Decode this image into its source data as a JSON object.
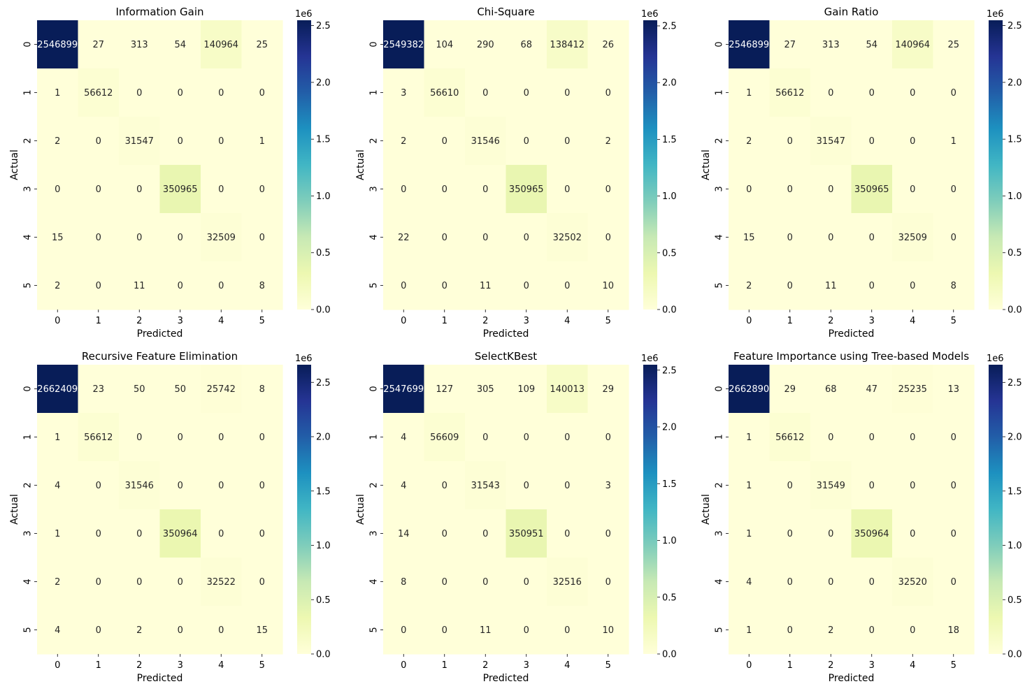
{
  "chart_data": [
    {
      "type": "heatmap",
      "title": "Information Gain",
      "xlabel": "Predicted",
      "ylabel": "Actual",
      "x_categories": [
        "0",
        "1",
        "2",
        "3",
        "4",
        "5"
      ],
      "y_categories": [
        "0",
        "1",
        "2",
        "3",
        "4",
        "5"
      ],
      "values": [
        [
          2546899,
          27,
          313,
          54,
          140964,
          25
        ],
        [
          1,
          56612,
          0,
          0,
          0,
          0
        ],
        [
          2,
          0,
          31547,
          0,
          0,
          1
        ],
        [
          0,
          0,
          0,
          350965,
          0,
          0
        ],
        [
          15,
          0,
          0,
          0,
          32509,
          0
        ],
        [
          2,
          0,
          11,
          0,
          0,
          8
        ]
      ],
      "colorbar": {
        "ticks": [
          "0.0",
          "0.5",
          "1.0",
          "1.5",
          "2.0",
          "2.5"
        ],
        "tick_values": [
          0,
          500000,
          1000000,
          1500000,
          2000000,
          2500000
        ],
        "multiplier": "1e6",
        "range": [
          0,
          2546899
        ]
      }
    },
    {
      "type": "heatmap",
      "title": "Chi-Square",
      "xlabel": "Predicted",
      "ylabel": "Actual",
      "x_categories": [
        "0",
        "1",
        "2",
        "3",
        "4",
        "5"
      ],
      "y_categories": [
        "0",
        "1",
        "2",
        "3",
        "4",
        "5"
      ],
      "values": [
        [
          2549382,
          104,
          290,
          68,
          138412,
          26
        ],
        [
          3,
          56610,
          0,
          0,
          0,
          0
        ],
        [
          2,
          0,
          31546,
          0,
          0,
          2
        ],
        [
          0,
          0,
          0,
          350965,
          0,
          0
        ],
        [
          22,
          0,
          0,
          0,
          32502,
          0
        ],
        [
          0,
          0,
          11,
          0,
          0,
          10
        ]
      ],
      "colorbar": {
        "ticks": [
          "0.0",
          "0.5",
          "1.0",
          "1.5",
          "2.0",
          "2.5"
        ],
        "tick_values": [
          0,
          500000,
          1000000,
          1500000,
          2000000,
          2500000
        ],
        "multiplier": "1e6",
        "range": [
          0,
          2549382
        ]
      }
    },
    {
      "type": "heatmap",
      "title": "Gain Ratio",
      "xlabel": "Predicted",
      "ylabel": "Actual",
      "x_categories": [
        "0",
        "1",
        "2",
        "3",
        "4",
        "5"
      ],
      "y_categories": [
        "0",
        "1",
        "2",
        "3",
        "4",
        "5"
      ],
      "values": [
        [
          2546899,
          27,
          313,
          54,
          140964,
          25
        ],
        [
          1,
          56612,
          0,
          0,
          0,
          0
        ],
        [
          2,
          0,
          31547,
          0,
          0,
          1
        ],
        [
          0,
          0,
          0,
          350965,
          0,
          0
        ],
        [
          15,
          0,
          0,
          0,
          32509,
          0
        ],
        [
          2,
          0,
          11,
          0,
          0,
          8
        ]
      ],
      "colorbar": {
        "ticks": [
          "0.0",
          "0.5",
          "1.0",
          "1.5",
          "2.0",
          "2.5"
        ],
        "tick_values": [
          0,
          500000,
          1000000,
          1500000,
          2000000,
          2500000
        ],
        "multiplier": "1e6",
        "range": [
          0,
          2546899
        ]
      }
    },
    {
      "type": "heatmap",
      "title": "Recursive Feature Elimination",
      "xlabel": "Predicted",
      "ylabel": "Actual",
      "x_categories": [
        "0",
        "1",
        "2",
        "3",
        "4",
        "5"
      ],
      "y_categories": [
        "0",
        "1",
        "2",
        "3",
        "4",
        "5"
      ],
      "values": [
        [
          2662409,
          23,
          50,
          50,
          25742,
          8
        ],
        [
          1,
          56612,
          0,
          0,
          0,
          0
        ],
        [
          4,
          0,
          31546,
          0,
          0,
          0
        ],
        [
          1,
          0,
          0,
          350964,
          0,
          0
        ],
        [
          2,
          0,
          0,
          0,
          32522,
          0
        ],
        [
          4,
          0,
          2,
          0,
          0,
          15
        ]
      ],
      "colorbar": {
        "ticks": [
          "0.0",
          "0.5",
          "1.0",
          "1.5",
          "2.0",
          "2.5"
        ],
        "tick_values": [
          0,
          500000,
          1000000,
          1500000,
          2000000,
          2500000
        ],
        "multiplier": "1e6",
        "range": [
          0,
          2662409
        ]
      }
    },
    {
      "type": "heatmap",
      "title": "SelectKBest",
      "xlabel": "Predicted",
      "ylabel": "Actual",
      "x_categories": [
        "0",
        "1",
        "2",
        "3",
        "4",
        "5"
      ],
      "y_categories": [
        "0",
        "1",
        "2",
        "3",
        "4",
        "5"
      ],
      "values": [
        [
          2547699,
          127,
          305,
          109,
          140013,
          29
        ],
        [
          4,
          56609,
          0,
          0,
          0,
          0
        ],
        [
          4,
          0,
          31543,
          0,
          0,
          3
        ],
        [
          14,
          0,
          0,
          350951,
          0,
          0
        ],
        [
          8,
          0,
          0,
          0,
          32516,
          0
        ],
        [
          0,
          0,
          11,
          0,
          0,
          10
        ]
      ],
      "colorbar": {
        "ticks": [
          "0.0",
          "0.5",
          "1.0",
          "1.5",
          "2.0",
          "2.5"
        ],
        "tick_values": [
          0,
          500000,
          1000000,
          1500000,
          2000000,
          2500000
        ],
        "multiplier": "1e6",
        "range": [
          0,
          2547699
        ]
      }
    },
    {
      "type": "heatmap",
      "title": "Feature Importance using Tree-based Models",
      "xlabel": "Predicted",
      "ylabel": "Actual",
      "x_categories": [
        "0",
        "1",
        "2",
        "3",
        "4",
        "5"
      ],
      "y_categories": [
        "0",
        "1",
        "2",
        "3",
        "4",
        "5"
      ],
      "values": [
        [
          2662890,
          29,
          68,
          47,
          25235,
          13
        ],
        [
          1,
          56612,
          0,
          0,
          0,
          0
        ],
        [
          1,
          0,
          31549,
          0,
          0,
          0
        ],
        [
          1,
          0,
          0,
          350964,
          0,
          0
        ],
        [
          4,
          0,
          0,
          0,
          32520,
          0
        ],
        [
          1,
          0,
          2,
          0,
          0,
          18
        ]
      ],
      "colorbar": {
        "ticks": [
          "0.0",
          "0.5",
          "1.0",
          "1.5",
          "2.0",
          "2.5"
        ],
        "tick_values": [
          0,
          500000,
          1000000,
          1500000,
          2000000,
          2500000
        ],
        "multiplier": "1e6",
        "range": [
          0,
          2662890
        ]
      }
    }
  ],
  "colormap": {
    "name": "YlGnBu",
    "stops": [
      "#ffffd9",
      "#edf8b1",
      "#c7e9b4",
      "#7fcdbb",
      "#41b6c4",
      "#1d91c0",
      "#225ea8",
      "#253494",
      "#081d58"
    ],
    "annot_dark": "#262626",
    "annot_light": "#ffffff"
  }
}
